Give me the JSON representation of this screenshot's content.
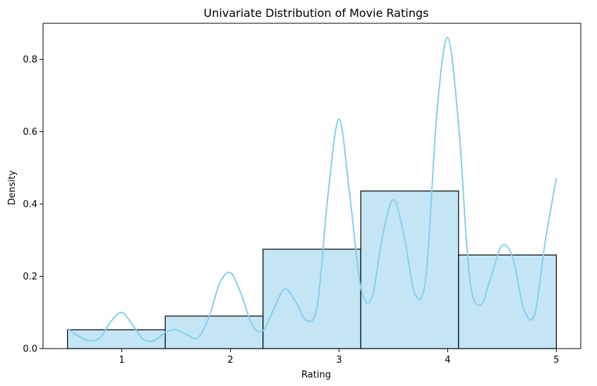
{
  "chart_data": {
    "type": "bar",
    "title": "Univariate Distribution of Movie Ratings",
    "xlabel": "Rating",
    "ylabel": "Density",
    "xlim": [
      0.275,
      5.225
    ],
    "ylim": [
      0,
      0.9
    ],
    "xticks": [
      1,
      2,
      3,
      4,
      5
    ],
    "yticks": [
      0.0,
      0.2,
      0.4,
      0.6,
      0.8
    ],
    "ytick_labels": [
      "0.0",
      "0.2",
      "0.4",
      "0.6",
      "0.8"
    ],
    "grid": false,
    "legend": "none",
    "bins": [
      {
        "x0": 0.5,
        "x1": 1.4,
        "value": 0.052
      },
      {
        "x0": 1.4,
        "x1": 2.3,
        "value": 0.09
      },
      {
        "x0": 2.3,
        "x1": 3.2,
        "value": 0.275
      },
      {
        "x0": 3.2,
        "x1": 4.1,
        "value": 0.436
      },
      {
        "x0": 4.1,
        "x1": 5.0,
        "value": 0.259
      }
    ],
    "kde": {
      "x": [
        0.5,
        0.6,
        0.7,
        0.8,
        0.9,
        1.0,
        1.1,
        1.2,
        1.3,
        1.4,
        1.5,
        1.6,
        1.7,
        1.8,
        1.9,
        2.0,
        2.1,
        2.2,
        2.3,
        2.4,
        2.5,
        2.6,
        2.7,
        2.8,
        2.9,
        3.0,
        3.1,
        3.2,
        3.3,
        3.4,
        3.5,
        3.6,
        3.7,
        3.8,
        3.9,
        4.0,
        4.1,
        4.2,
        4.3,
        4.4,
        4.5,
        4.6,
        4.7,
        4.8,
        4.9,
        5.0
      ],
      "y": [
        0.055,
        0.035,
        0.022,
        0.03,
        0.075,
        0.1,
        0.065,
        0.025,
        0.022,
        0.045,
        0.052,
        0.038,
        0.03,
        0.085,
        0.18,
        0.21,
        0.15,
        0.065,
        0.05,
        0.11,
        0.165,
        0.13,
        0.078,
        0.12,
        0.43,
        0.635,
        0.42,
        0.17,
        0.14,
        0.31,
        0.412,
        0.31,
        0.15,
        0.2,
        0.65,
        0.86,
        0.62,
        0.2,
        0.12,
        0.2,
        0.285,
        0.25,
        0.11,
        0.095,
        0.3,
        0.472
      ]
    },
    "bar_color": "#c3e5f4",
    "bar_edge_color": "#000000",
    "kde_color": "#87ceeb"
  }
}
